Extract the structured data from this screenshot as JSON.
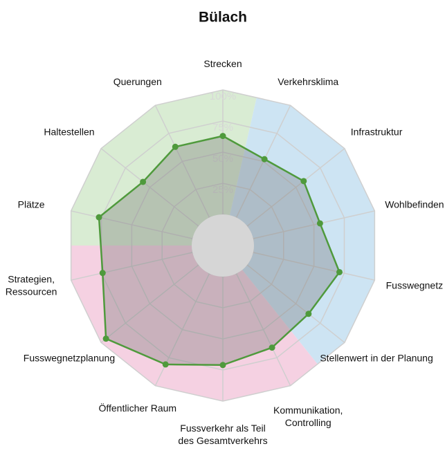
{
  "chart_data": {
    "type": "radar",
    "title": "Bülach",
    "categories": [
      "Strecken",
      "Verkehrsklima",
      "Infrastruktur",
      "Wohlbefinden",
      "Fusswegnetz",
      "Stellenwert in der Planung",
      "Kommunikation,\nControlling",
      "Fussverkehr als Teil\ndes Gesamtverkehrs",
      "Öffentlicher Raum",
      "Fusswegnetzplanung",
      "Strategien,\nRessourcen",
      "Plätze",
      "Haltestellen",
      "Querungen"
    ],
    "values": [
      63,
      52,
      58,
      55,
      71,
      63,
      66,
      71,
      81,
      95,
      74,
      77,
      57,
      63
    ],
    "color": "#4f9a3c",
    "sector_colors": [
      "#d9ecd3",
      "#cde4f3",
      "#f5d1e2"
    ],
    "rlim": [
      0,
      100
    ],
    "rticks": [
      {
        "value": 0,
        "label": "0%"
      },
      {
        "value": 25,
        "label": "25%"
      },
      {
        "value": 50,
        "label": "50%"
      },
      {
        "value": 75,
        "label": "75%"
      },
      {
        "value": 100,
        "label": "100%"
      }
    ],
    "grid": true
  }
}
